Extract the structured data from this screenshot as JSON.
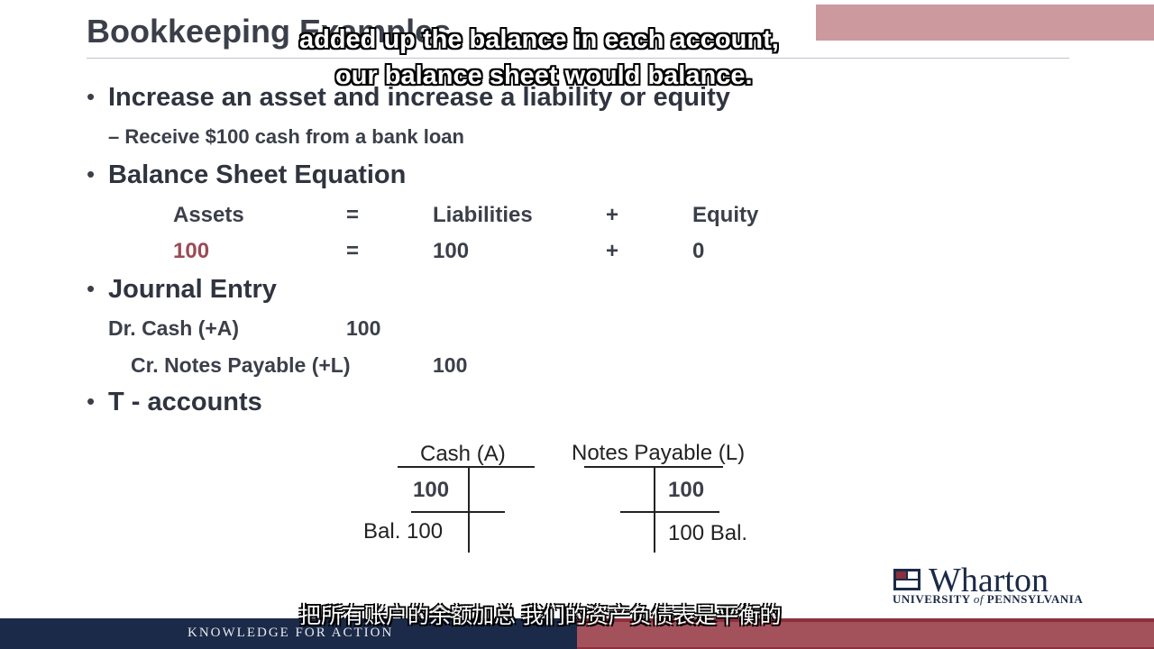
{
  "slide": {
    "title": "Bookkeeping Examples",
    "bullets": {
      "b1": "Increase an asset and increase a liability or equity",
      "b1_sub": "– Receive $100 cash from a bank loan",
      "b2": "Balance Sheet Equation",
      "b3": "Journal Entry",
      "b4": "T - accounts"
    },
    "equation": {
      "h_assets": "Assets",
      "h_eq": "=",
      "h_liab": "Liabilities",
      "h_plus": "+",
      "h_equity": "Equity",
      "v_assets": "100",
      "v_eq": "=",
      "v_liab": "100",
      "v_plus": "+",
      "v_equity": "0"
    },
    "journal": {
      "dr_label": "Dr. Cash (+A)",
      "dr_amount": "100",
      "cr_label": "Cr. Notes Payable (+L)",
      "cr_amount": "100"
    },
    "t_accounts": {
      "cash_title": "Cash (A)",
      "cash_debit": "100",
      "cash_balance": "Bal. 100",
      "np_title": "Notes Payable (L)",
      "np_credit": "100",
      "np_balance": "100 Bal."
    }
  },
  "subtitles": {
    "en_line1": "added up the balance in each account,",
    "en_line2": "our balance sheet would balance.",
    "cn": "把所有账户的余额加总 我们的资产负债表是平衡的"
  },
  "branding": {
    "footer_tagline": "KNOWLEDGE FOR ACTION",
    "logo_word": "Wharton",
    "logo_sub_a": "UNIVERSITY ",
    "logo_sub_of": "of",
    "logo_sub_b": " PENNSYLVANIA"
  },
  "colors": {
    "navy": "#1b2a48",
    "crimson": "#8c2f3c",
    "accent_red_text": "#9b4a55"
  }
}
